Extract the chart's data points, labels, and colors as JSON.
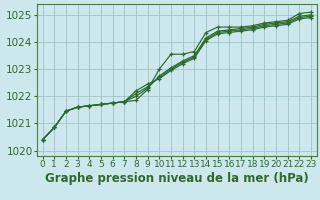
{
  "title": "Graphe pression niveau de la mer (hPa)",
  "xlabel_hours": [
    0,
    1,
    2,
    3,
    4,
    5,
    6,
    7,
    8,
    9,
    10,
    11,
    12,
    13,
    14,
    15,
    16,
    17,
    18,
    19,
    20,
    21,
    22,
    23
  ],
  "line1": [
    1020.4,
    1020.85,
    1021.45,
    1021.6,
    1021.65,
    1021.7,
    1021.75,
    1021.8,
    1021.85,
    1022.25,
    1023.0,
    1023.55,
    1023.55,
    1023.65,
    1024.35,
    1024.55,
    1024.55,
    1024.55,
    1024.6,
    1024.7,
    1024.75,
    1024.8,
    1025.05,
    1025.1
  ],
  "line2": [
    1020.4,
    1020.85,
    1021.45,
    1021.6,
    1021.65,
    1021.7,
    1021.75,
    1021.8,
    1022.0,
    1022.3,
    1022.75,
    1023.05,
    1023.3,
    1023.5,
    1024.15,
    1024.4,
    1024.45,
    1024.5,
    1024.55,
    1024.65,
    1024.7,
    1024.75,
    1024.95,
    1025.0
  ],
  "line3": [
    1020.4,
    1020.85,
    1021.45,
    1021.6,
    1021.65,
    1021.7,
    1021.75,
    1021.8,
    1022.1,
    1022.35,
    1022.7,
    1023.0,
    1023.25,
    1023.45,
    1024.1,
    1024.35,
    1024.4,
    1024.45,
    1024.5,
    1024.6,
    1024.65,
    1024.7,
    1024.9,
    1024.95
  ],
  "line4": [
    1020.4,
    1020.85,
    1021.45,
    1021.6,
    1021.65,
    1021.7,
    1021.75,
    1021.8,
    1022.2,
    1022.45,
    1022.65,
    1022.95,
    1023.2,
    1023.4,
    1024.05,
    1024.3,
    1024.35,
    1024.4,
    1024.45,
    1024.55,
    1024.6,
    1024.65,
    1024.85,
    1024.9
  ],
  "line_color": "#2d6a2d",
  "marker": "+",
  "bg_color": "#cce8ec",
  "grid_color": "#a0c4c8",
  "ylim": [
    1019.8,
    1025.4
  ],
  "yticks": [
    1020,
    1021,
    1022,
    1023,
    1024,
    1025
  ],
  "title_fontsize": 8.5,
  "tick_fontsize": 7.5
}
